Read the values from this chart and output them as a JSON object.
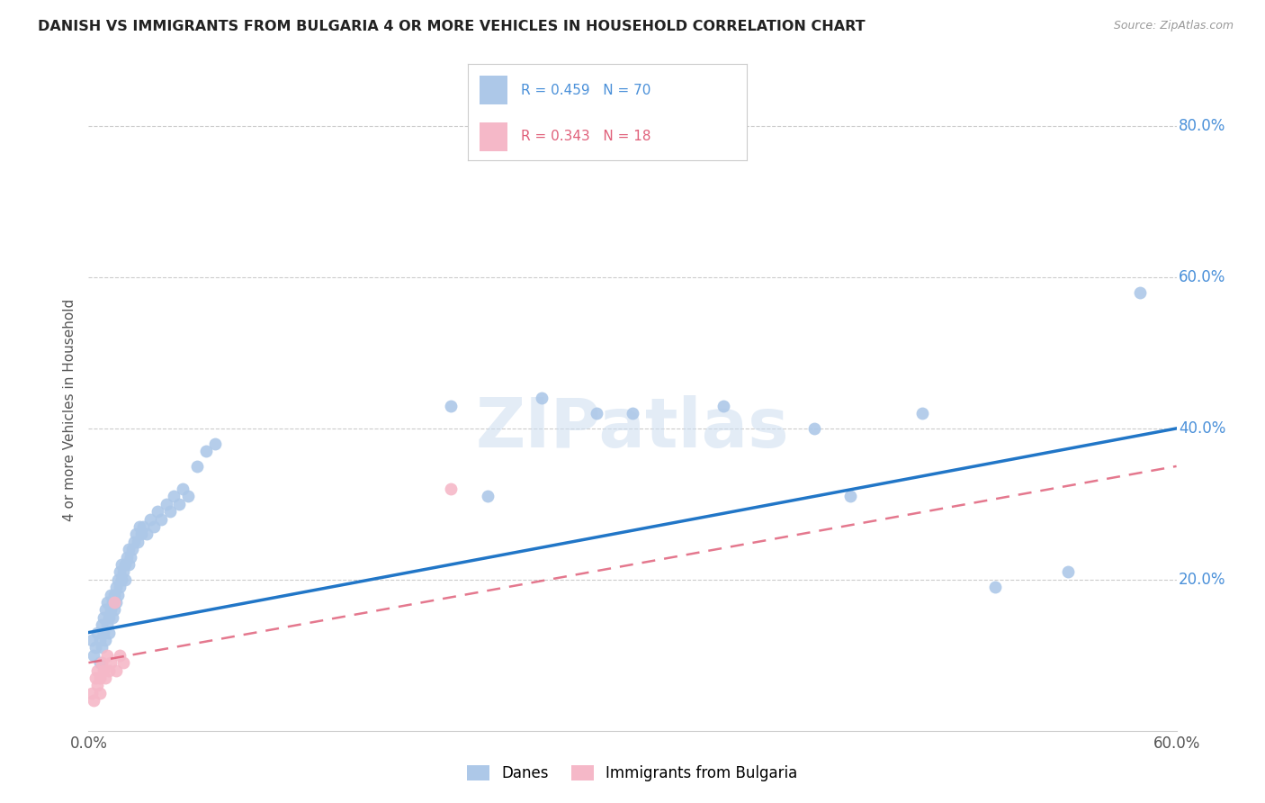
{
  "title": "DANISH VS IMMIGRANTS FROM BULGARIA 4 OR MORE VEHICLES IN HOUSEHOLD CORRELATION CHART",
  "source": "Source: ZipAtlas.com",
  "ylabel": "4 or more Vehicles in Household",
  "xmin": 0.0,
  "xmax": 0.6,
  "ymin": 0.0,
  "ymax": 0.85,
  "danes_R": 0.459,
  "danes_N": 70,
  "bulgaria_R": 0.343,
  "bulgaria_N": 18,
  "danes_color": "#adc8e8",
  "danes_line_color": "#2176c7",
  "bulgaria_color": "#f5b8c8",
  "bulgaria_line_color": "#e0607a",
  "danes_x": [
    0.002,
    0.003,
    0.004,
    0.005,
    0.006,
    0.006,
    0.007,
    0.007,
    0.008,
    0.008,
    0.009,
    0.009,
    0.01,
    0.01,
    0.011,
    0.011,
    0.012,
    0.012,
    0.013,
    0.013,
    0.014,
    0.014,
    0.015,
    0.015,
    0.016,
    0.016,
    0.017,
    0.017,
    0.018,
    0.018,
    0.019,
    0.02,
    0.02,
    0.021,
    0.022,
    0.022,
    0.023,
    0.024,
    0.025,
    0.026,
    0.027,
    0.028,
    0.029,
    0.03,
    0.032,
    0.034,
    0.036,
    0.038,
    0.04,
    0.043,
    0.045,
    0.047,
    0.05,
    0.052,
    0.055,
    0.06,
    0.065,
    0.07,
    0.2,
    0.22,
    0.25,
    0.28,
    0.3,
    0.35,
    0.4,
    0.42,
    0.46,
    0.5,
    0.54,
    0.58
  ],
  "danes_y": [
    0.12,
    0.1,
    0.11,
    0.13,
    0.09,
    0.12,
    0.11,
    0.14,
    0.13,
    0.15,
    0.12,
    0.16,
    0.14,
    0.17,
    0.15,
    0.13,
    0.16,
    0.18,
    0.15,
    0.17,
    0.18,
    0.16,
    0.17,
    0.19,
    0.18,
    0.2,
    0.19,
    0.21,
    0.2,
    0.22,
    0.21,
    0.2,
    0.22,
    0.23,
    0.22,
    0.24,
    0.23,
    0.24,
    0.25,
    0.26,
    0.25,
    0.27,
    0.26,
    0.27,
    0.26,
    0.28,
    0.27,
    0.29,
    0.28,
    0.3,
    0.29,
    0.31,
    0.3,
    0.32,
    0.31,
    0.35,
    0.37,
    0.38,
    0.43,
    0.31,
    0.44,
    0.42,
    0.42,
    0.43,
    0.4,
    0.31,
    0.42,
    0.19,
    0.21,
    0.58
  ],
  "bulgaria_x": [
    0.002,
    0.003,
    0.004,
    0.005,
    0.005,
    0.006,
    0.006,
    0.007,
    0.008,
    0.009,
    0.01,
    0.011,
    0.012,
    0.014,
    0.015,
    0.017,
    0.019,
    0.2
  ],
  "bulgaria_y": [
    0.05,
    0.04,
    0.07,
    0.06,
    0.08,
    0.07,
    0.05,
    0.09,
    0.08,
    0.07,
    0.1,
    0.08,
    0.09,
    0.17,
    0.08,
    0.1,
    0.09,
    0.32
  ],
  "watermark": "ZIPatlas",
  "legend_danes_label": "Danes",
  "legend_bulgaria_label": "Immigrants from Bulgaria",
  "background_color": "#ffffff",
  "grid_color": "#cccccc"
}
